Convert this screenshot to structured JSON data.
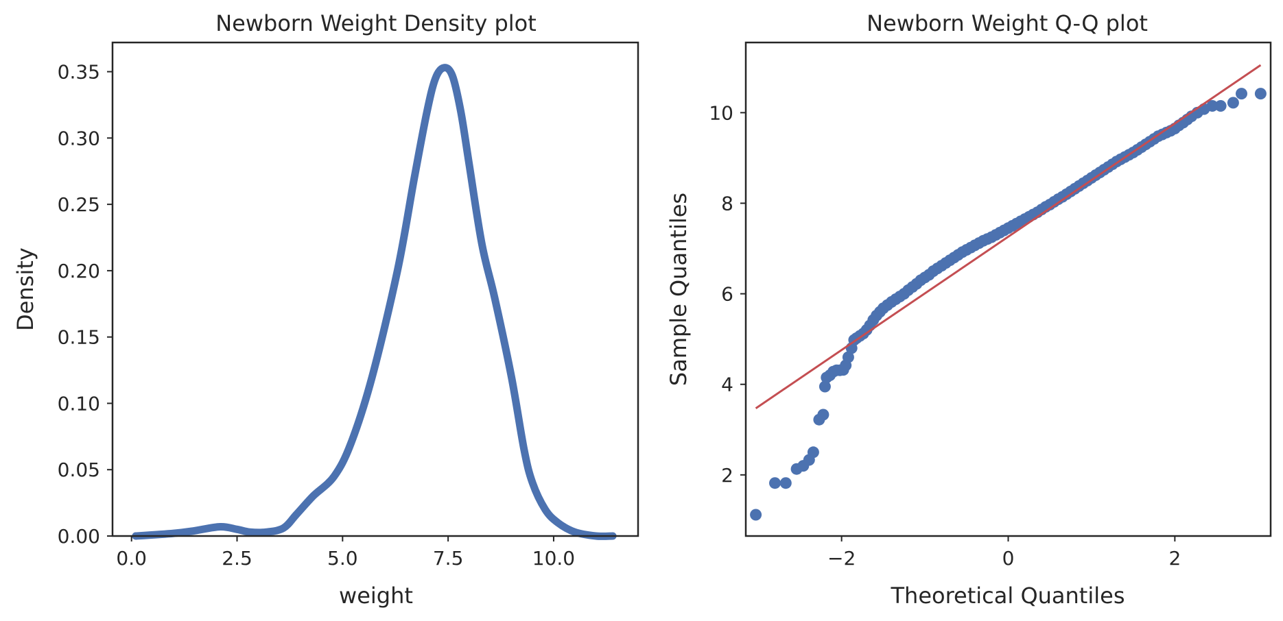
{
  "chart_data": [
    {
      "type": "line",
      "title": "Newborn Weight Density plot",
      "xlabel": "weight",
      "ylabel": "Density",
      "xlim": [
        -0.45,
        12.0
      ],
      "ylim": [
        0,
        0.372
      ],
      "xticks": [
        0.0,
        2.5,
        5.0,
        7.5,
        10.0
      ],
      "xtick_labels": [
        "0.0",
        "2.5",
        "5.0",
        "7.5",
        "10.0"
      ],
      "yticks": [
        0.0,
        0.05,
        0.1,
        0.15,
        0.2,
        0.25,
        0.3,
        0.35
      ],
      "ytick_labels": [
        "0.00",
        "0.05",
        "0.10",
        "0.15",
        "0.20",
        "0.25",
        "0.30",
        "0.35"
      ],
      "grid": false,
      "line_color": "#4c72b0",
      "series": [
        {
          "x": [
            0.1,
            1.0,
            1.5,
            2.1,
            2.5,
            2.8,
            3.2,
            3.6,
            3.9,
            4.3,
            4.8,
            5.2,
            5.7,
            6.3,
            6.7,
            7.0,
            7.2,
            7.4,
            7.6,
            7.8,
            8.0,
            8.3,
            8.6,
            9.0,
            9.3,
            9.5,
            9.8,
            10.1,
            10.5,
            11.0,
            11.4
          ],
          "y": [
            0.0,
            0.002,
            0.004,
            0.007,
            0.005,
            0.003,
            0.003,
            0.006,
            0.016,
            0.03,
            0.045,
            0.07,
            0.12,
            0.2,
            0.27,
            0.32,
            0.345,
            0.353,
            0.347,
            0.32,
            0.28,
            0.22,
            0.18,
            0.12,
            0.065,
            0.04,
            0.02,
            0.01,
            0.003,
            0.0,
            0.0
          ]
        }
      ]
    },
    {
      "type": "scatter",
      "title": "Newborn Weight Q-Q plot",
      "xlabel": "Theoretical Quantiles",
      "ylabel": "Sample Quantiles",
      "xlim": [
        -3.15,
        3.15
      ],
      "ylim": [
        0.65,
        11.55
      ],
      "xticks": [
        -2,
        0,
        2
      ],
      "xtick_labels": [
        "−2",
        "0",
        "2"
      ],
      "yticks": [
        2,
        4,
        6,
        8,
        10
      ],
      "ytick_labels": [
        "2",
        "4",
        "6",
        "8",
        "10"
      ],
      "grid": false,
      "point_color": "#4c72b0",
      "line_color": "#c44e52",
      "reference_line": {
        "x": [
          -3.03,
          3.03
        ],
        "y": [
          3.47,
          11.05
        ]
      },
      "series": [
        {
          "x": [
            -3.03,
            -2.8,
            -2.67,
            -2.54,
            -2.46,
            -2.39,
            -2.34,
            -2.27,
            -2.22,
            -2.2,
            -2.18,
            -2.14,
            -2.1,
            -2.06,
            -2.02,
            -1.98,
            -1.95,
            -1.92,
            -1.88,
            -1.85,
            -1.82,
            -1.78,
            -1.74,
            -1.7,
            -1.66,
            -1.62,
            -1.58,
            -1.54,
            -1.5,
            -1.45,
            -1.4,
            -1.35,
            -1.3,
            -1.25,
            -1.2,
            -1.15,
            -1.1,
            -1.05,
            -1.0,
            -0.95,
            -0.9,
            -0.85,
            -0.8,
            -0.75,
            -0.7,
            -0.65,
            -0.6,
            -0.55,
            -0.5,
            -0.45,
            -0.4,
            -0.35,
            -0.3,
            -0.25,
            -0.2,
            -0.15,
            -0.1,
            -0.05,
            0.0,
            0.05,
            0.1,
            0.15,
            0.2,
            0.25,
            0.3,
            0.35,
            0.4,
            0.45,
            0.5,
            0.55,
            0.6,
            0.65,
            0.7,
            0.75,
            0.8,
            0.85,
            0.9,
            0.95,
            1.0,
            1.05,
            1.1,
            1.15,
            1.2,
            1.25,
            1.3,
            1.35,
            1.4,
            1.45,
            1.5,
            1.55,
            1.6,
            1.65,
            1.7,
            1.75,
            1.8,
            1.85,
            1.9,
            1.95,
            2.0,
            2.05,
            2.1,
            2.15,
            2.2,
            2.27,
            2.35,
            2.45,
            2.55,
            2.7,
            2.8,
            3.03
          ],
          "y": [
            1.12,
            1.82,
            1.82,
            2.13,
            2.2,
            2.33,
            2.5,
            3.22,
            3.33,
            3.95,
            4.15,
            4.2,
            4.28,
            4.31,
            4.31,
            4.32,
            4.42,
            4.6,
            4.8,
            4.98,
            5.02,
            5.07,
            5.12,
            5.2,
            5.3,
            5.42,
            5.52,
            5.6,
            5.68,
            5.75,
            5.82,
            5.88,
            5.94,
            6.0,
            6.08,
            6.15,
            6.22,
            6.3,
            6.36,
            6.42,
            6.5,
            6.56,
            6.62,
            6.68,
            6.74,
            6.8,
            6.86,
            6.92,
            6.97,
            7.02,
            7.07,
            7.12,
            7.17,
            7.21,
            7.25,
            7.3,
            7.35,
            7.4,
            7.45,
            7.5,
            7.55,
            7.6,
            7.65,
            7.7,
            7.75,
            7.8,
            7.86,
            7.92,
            7.97,
            8.03,
            8.09,
            8.14,
            8.2,
            8.26,
            8.32,
            8.38,
            8.44,
            8.5,
            8.56,
            8.62,
            8.68,
            8.74,
            8.8,
            8.86,
            8.92,
            8.97,
            9.02,
            9.07,
            9.12,
            9.18,
            9.24,
            9.3,
            9.36,
            9.42,
            9.48,
            9.52,
            9.56,
            9.6,
            9.65,
            9.72,
            9.78,
            9.85,
            9.92,
            10.0,
            10.08,
            10.15,
            10.15,
            10.22,
            10.42,
            10.42
          ]
        }
      ]
    }
  ]
}
